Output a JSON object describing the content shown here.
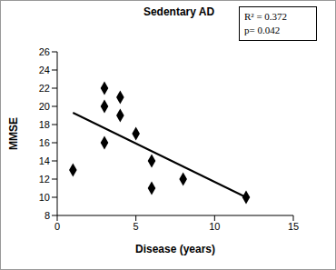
{
  "chart_data": {
    "type": "scatter",
    "title": "Sedentary AD",
    "x_label": "Disease (years)",
    "y_label": "MMSE",
    "x": [
      1,
      3,
      3,
      3,
      4,
      4,
      5,
      6,
      6,
      8,
      12
    ],
    "values": [
      13,
      22,
      20,
      16,
      21,
      19,
      17,
      14,
      11,
      12,
      10
    ],
    "color": "#000000",
    "marker": "diamond",
    "trendline": {
      "x": [
        1,
        12
      ],
      "values": [
        19.3,
        10.0
      ],
      "color": "#000000",
      "line_style": "solid"
    },
    "annotations": [
      "R² = 0.372",
      "p= 0.042"
    ],
    "xlim": [
      0,
      15
    ],
    "xticks": [
      0,
      5,
      10,
      15
    ],
    "ylim": [
      8,
      26
    ],
    "yticks": [
      8,
      10,
      12,
      14,
      16,
      18,
      20,
      22,
      24,
      26
    ],
    "grid": false
  }
}
